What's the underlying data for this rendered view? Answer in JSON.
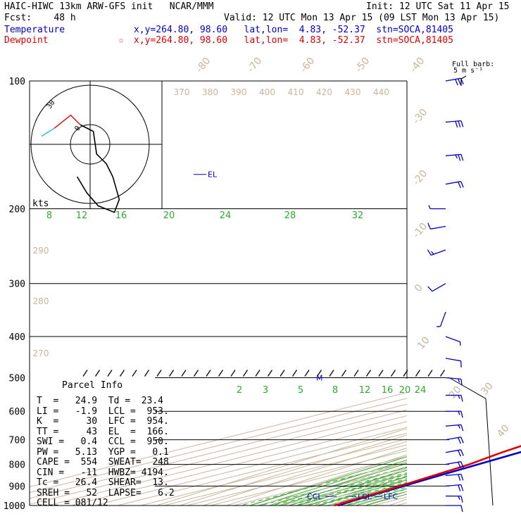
{
  "header": {
    "model_title": "HAIC-HIWC 13km ARW-GFS init   NCAR/MMM",
    "init": "Init: 12 UTC Sat 11 Apr 15",
    "fcst": "Fcst:    48 h",
    "valid": "Valid: 12 UTC Mon 13 Apr 15 (09 LST Mon 13 Apr 15)",
    "temperature_label": "Temperature",
    "temperature_info": "x,y=264.80, 98.60   lat,lon=  4.83, -52.37  stn=SOCA,81405",
    "dewpoint_label": "Dewpoint",
    "dewpoint_info": "x,y=264.80, 98.60   lat,lon=  4.83, -52.37  stn=SOCA,81405",
    "dewpoint_marker": "☆"
  },
  "barb_legend": {
    "line1": "Full barb:",
    "line2": "5 m s⁻¹"
  },
  "hodograph": {
    "units_label": "kts",
    "ring_labels": [
      "30",
      "0"
    ]
  },
  "parcel_info": {
    "title": "Parcel Info",
    "rows": [
      "T  =   24.9  Td =  23.4",
      "LI =   -1.9  LCL =  953.",
      "K  =     30  LFC =  954.",
      "TT =     43  EL  =  166.",
      "SWI =   0.4  CCL =  950.",
      "PW =   5.13  YGP =   0.1",
      "CAPE =  554  SWEAT=  248",
      "CIN =   -11  HWBZ= 4194.",
      "Tc =   26.4  SHEAR=  13.",
      "SREH =   52  LAPSE=   6.2",
      "CELL = 081/12"
    ]
  },
  "chart_data": {
    "type": "line",
    "chart_kind": "skew-T log-P diagram",
    "y_axis": {
      "label": "",
      "scale": "log",
      "range": [
        1000,
        100
      ],
      "ticks": [
        100,
        200,
        300,
        400,
        500,
        600,
        700,
        800,
        900,
        1000
      ]
    },
    "temperature_isotherm_labels": [
      "-80",
      "-70",
      "-60",
      "-50",
      "-40",
      "-30",
      "-20",
      "-10",
      "0",
      "10",
      "20",
      "30",
      "40"
    ],
    "theta_labels": [
      "370",
      "380",
      "390",
      "400",
      "410",
      "420",
      "430",
      "440"
    ],
    "theta_labels_lower": [
      "290",
      "280",
      "270"
    ],
    "mixing_ratio_labels_upper": [
      "8",
      "12",
      "16",
      "20",
      "24",
      "28",
      "32"
    ],
    "mixing_ratio_labels_lower": [
      "2",
      "3",
      "5",
      "8",
      "12",
      "16",
      "20",
      "24"
    ],
    "annotations": [
      "EL",
      "M",
      "CCL",
      "LCL",
      "LFC"
    ],
    "series": [
      {
        "name": "Temperature",
        "color": "#0000cc",
        "points": [
          [
            1000,
            24.9
          ],
          [
            975,
            23.0
          ],
          [
            953,
            22.0
          ],
          [
            925,
            20.8
          ],
          [
            900,
            19.6
          ],
          [
            850,
            17.0
          ],
          [
            800,
            14.3
          ],
          [
            750,
            11.6
          ],
          [
            700,
            8.6
          ],
          [
            650,
            5.3
          ],
          [
            600,
            1.6
          ],
          [
            550,
            -2.4
          ],
          [
            500,
            -6.4
          ],
          [
            450,
            -10.8
          ],
          [
            400,
            -16.2
          ],
          [
            350,
            -22.8
          ],
          [
            300,
            -31.0
          ],
          [
            250,
            -41.0
          ],
          [
            200,
            -54.0
          ],
          [
            175,
            -61.0
          ],
          [
            166,
            -64.0
          ],
          [
            150,
            -69.0
          ],
          [
            125,
            -75.0
          ],
          [
            100,
            -81.0
          ]
        ]
      },
      {
        "name": "Dewpoint",
        "color": "#dd0000",
        "points": [
          [
            1000,
            23.4
          ],
          [
            975,
            22.0
          ],
          [
            953,
            21.0
          ],
          [
            925,
            19.8
          ],
          [
            900,
            18.0
          ],
          [
            850,
            14.5
          ],
          [
            800,
            10.5
          ],
          [
            750,
            4.0
          ],
          [
            700,
            -1.5
          ],
          [
            650,
            -4.0
          ],
          [
            600,
            -7.5
          ],
          [
            550,
            -11.5
          ],
          [
            500,
            -17.0
          ],
          [
            460,
            -25.0
          ],
          [
            440,
            -33.0
          ],
          [
            400,
            -40.0
          ],
          [
            350,
            -45.0
          ],
          [
            300,
            -49.0
          ],
          [
            250,
            -57.0
          ],
          [
            200,
            -67.0
          ],
          [
            175,
            -72.0
          ],
          [
            150,
            -76.0
          ],
          [
            125,
            -81.0
          ],
          [
            100,
            -86.0
          ]
        ]
      }
    ],
    "wind_profile": [
      {
        "p": 1000,
        "dir": 90,
        "spd": 10
      },
      {
        "p": 950,
        "dir": 90,
        "spd": 15
      },
      {
        "p": 900,
        "dir": 85,
        "spd": 20
      },
      {
        "p": 850,
        "dir": 85,
        "spd": 20
      },
      {
        "p": 800,
        "dir": 80,
        "spd": 20
      },
      {
        "p": 750,
        "dir": 80,
        "spd": 20
      },
      {
        "p": 700,
        "dir": 80,
        "spd": 20
      },
      {
        "p": 650,
        "dir": 85,
        "spd": 15
      },
      {
        "p": 600,
        "dir": 90,
        "spd": 15
      },
      {
        "p": 550,
        "dir": 90,
        "spd": 15
      },
      {
        "p": 500,
        "dir": 95,
        "spd": 15
      },
      {
        "p": 450,
        "dir": 100,
        "spd": 10
      },
      {
        "p": 400,
        "dir": 110,
        "spd": 5
      },
      {
        "p": 350,
        "dir": 200,
        "spd": 5
      },
      {
        "p": 300,
        "dir": 240,
        "spd": 10
      },
      {
        "p": 250,
        "dir": 250,
        "spd": 15
      },
      {
        "p": 220,
        "dir": 260,
        "spd": 10
      },
      {
        "p": 200,
        "dir": 270,
        "spd": 5
      },
      {
        "p": 175,
        "dir": 80,
        "spd": 20
      },
      {
        "p": 150,
        "dir": 85,
        "spd": 25
      },
      {
        "p": 125,
        "dir": 85,
        "spd": 30
      },
      {
        "p": 100,
        "dir": 80,
        "spd": 30
      }
    ],
    "hodograph_path": [
      [
        -30,
        -5
      ],
      [
        -22,
        -10
      ],
      [
        -12,
        -18
      ],
      [
        -6,
        -12
      ],
      [
        2,
        -8
      ],
      [
        4,
        6
      ],
      [
        10,
        12
      ],
      [
        14,
        20
      ],
      [
        18,
        34
      ],
      [
        15,
        42
      ],
      [
        5,
        38
      ],
      [
        -2,
        30
      ],
      [
        -8,
        20
      ]
    ]
  }
}
